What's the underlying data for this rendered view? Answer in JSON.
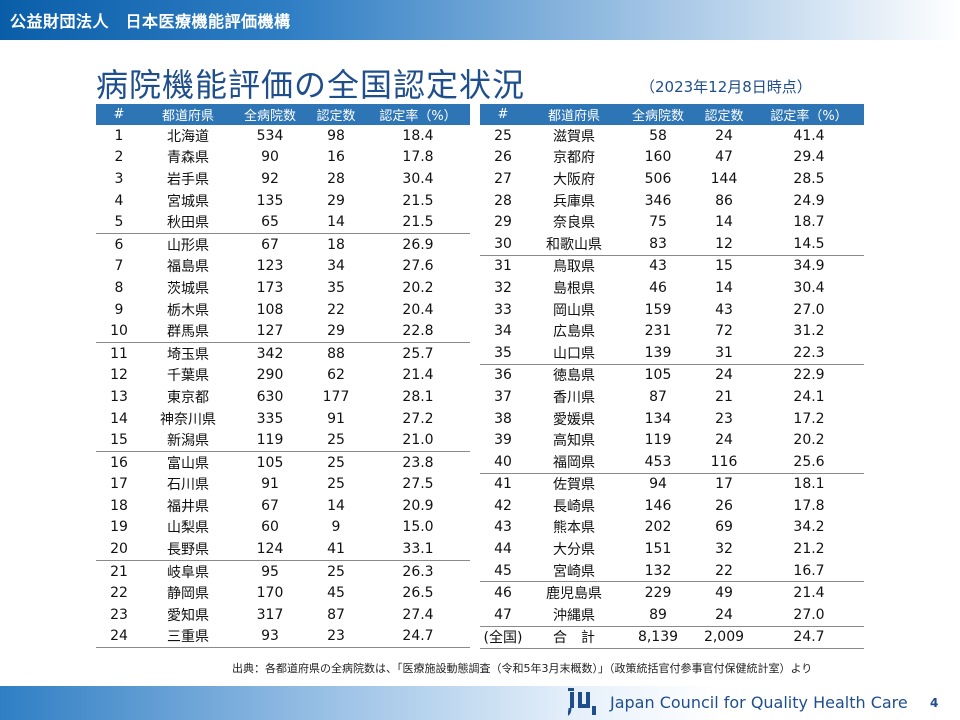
{
  "header": {
    "org_name": "公益財団法人　日本医療機能評価機構"
  },
  "title": "病院機能評価の全国認定状況",
  "subtitle": "（2023年12月8日時点）",
  "columns": [
    "#",
    "都道府県",
    "全病院数",
    "認定数",
    "認定率（%）"
  ],
  "left_rows": [
    [
      "1",
      "北海道",
      "534",
      "98",
      "18.4"
    ],
    [
      "2",
      "青森県",
      "90",
      "16",
      "17.8"
    ],
    [
      "3",
      "岩手県",
      "92",
      "28",
      "30.4"
    ],
    [
      "4",
      "宮城県",
      "135",
      "29",
      "21.5"
    ],
    [
      "5",
      "秋田県",
      "65",
      "14",
      "21.5"
    ],
    [
      "6",
      "山形県",
      "67",
      "18",
      "26.9"
    ],
    [
      "7",
      "福島県",
      "123",
      "34",
      "27.6"
    ],
    [
      "8",
      "茨城県",
      "173",
      "35",
      "20.2"
    ],
    [
      "9",
      "栃木県",
      "108",
      "22",
      "20.4"
    ],
    [
      "10",
      "群馬県",
      "127",
      "29",
      "22.8"
    ],
    [
      "11",
      "埼玉県",
      "342",
      "88",
      "25.7"
    ],
    [
      "12",
      "千葉県",
      "290",
      "62",
      "21.4"
    ],
    [
      "13",
      "東京都",
      "630",
      "177",
      "28.1"
    ],
    [
      "14",
      "神奈川県",
      "335",
      "91",
      "27.2"
    ],
    [
      "15",
      "新潟県",
      "119",
      "25",
      "21.0"
    ],
    [
      "16",
      "富山県",
      "105",
      "25",
      "23.8"
    ],
    [
      "17",
      "石川県",
      "91",
      "25",
      "27.5"
    ],
    [
      "18",
      "福井県",
      "67",
      "14",
      "20.9"
    ],
    [
      "19",
      "山梨県",
      "60",
      "9",
      "15.0"
    ],
    [
      "20",
      "長野県",
      "124",
      "41",
      "33.1"
    ],
    [
      "21",
      "岐阜県",
      "95",
      "25",
      "26.3"
    ],
    [
      "22",
      "静岡県",
      "170",
      "45",
      "26.5"
    ],
    [
      "23",
      "愛知県",
      "317",
      "87",
      "27.4"
    ],
    [
      "24",
      "三重県",
      "93",
      "23",
      "24.7"
    ]
  ],
  "right_rows": [
    [
      "25",
      "滋賀県",
      "58",
      "24",
      "41.4"
    ],
    [
      "26",
      "京都府",
      "160",
      "47",
      "29.4"
    ],
    [
      "27",
      "大阪府",
      "506",
      "144",
      "28.5"
    ],
    [
      "28",
      "兵庫県",
      "346",
      "86",
      "24.9"
    ],
    [
      "29",
      "奈良県",
      "75",
      "14",
      "18.7"
    ],
    [
      "30",
      "和歌山県",
      "83",
      "12",
      "14.5"
    ],
    [
      "31",
      "鳥取県",
      "43",
      "15",
      "34.9"
    ],
    [
      "32",
      "島根県",
      "46",
      "14",
      "30.4"
    ],
    [
      "33",
      "岡山県",
      "159",
      "43",
      "27.0"
    ],
    [
      "34",
      "広島県",
      "231",
      "72",
      "31.2"
    ],
    [
      "35",
      "山口県",
      "139",
      "31",
      "22.3"
    ],
    [
      "36",
      "徳島県",
      "105",
      "24",
      "22.9"
    ],
    [
      "37",
      "香川県",
      "87",
      "21",
      "24.1"
    ],
    [
      "38",
      "愛媛県",
      "134",
      "23",
      "17.2"
    ],
    [
      "39",
      "高知県",
      "119",
      "24",
      "20.2"
    ],
    [
      "40",
      "福岡県",
      "453",
      "116",
      "25.6"
    ],
    [
      "41",
      "佐賀県",
      "94",
      "17",
      "18.1"
    ],
    [
      "42",
      "長崎県",
      "146",
      "26",
      "17.8"
    ],
    [
      "43",
      "熊本県",
      "202",
      "69",
      "34.2"
    ],
    [
      "44",
      "大分県",
      "151",
      "32",
      "21.2"
    ],
    [
      "45",
      "宮崎県",
      "132",
      "22",
      "16.7"
    ],
    [
      "46",
      "鹿児島県",
      "229",
      "49",
      "21.4"
    ],
    [
      "47",
      "沖縄県",
      "89",
      "24",
      "27.0"
    ],
    [
      "(全国)",
      "合　計",
      "8,139",
      "2,009",
      "24.7"
    ]
  ],
  "source": "出典：各都道府県の全病院数は、「医療施設動態調査（令和5年3月末概数）」（政策統括官付参事官付保健統計室）より",
  "footer": {
    "org_en": "Japan Council for Quality Health Care",
    "page_number": "4"
  },
  "colors": {
    "header_blue": "#0a5ea8",
    "table_header": "#2e75b6",
    "title_blue": "#1f4e8c"
  }
}
